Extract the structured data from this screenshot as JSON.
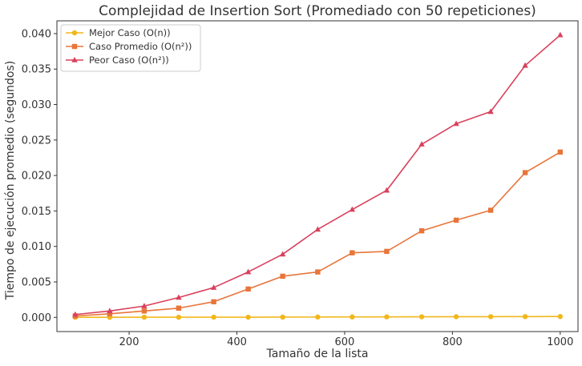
{
  "chart_data": {
    "type": "line",
    "title": "Complejidad de Insertion Sort (Promediado con 50 repeticiones)",
    "xlabel": "Tamaño de la lista",
    "ylabel": "Tiempo de ejecución promedio (segundos)",
    "xlim": [
      66,
      1033
    ],
    "ylim": [
      -0.002,
      0.0418
    ],
    "xticks": [
      200,
      400,
      600,
      800,
      1000
    ],
    "xtick_labels": [
      "200",
      "400",
      "600",
      "800",
      "1000"
    ],
    "yticks": [
      0.0,
      0.005,
      0.01,
      0.015,
      0.02,
      0.025,
      0.03,
      0.035,
      0.04
    ],
    "ytick_labels": [
      "0.000",
      "0.005",
      "0.010",
      "0.015",
      "0.020",
      "0.025",
      "0.030",
      "0.035",
      "0.040"
    ],
    "grid": false,
    "legend_position": "top-left",
    "x": [
      100,
      164,
      228,
      292,
      357,
      421,
      485,
      550,
      614,
      678,
      743,
      807,
      871,
      935,
      1000
    ],
    "series": [
      {
        "name": "Mejor Caso (O(n))",
        "color": "#f1b71c",
        "marker": "circle",
        "values": [
          1e-05,
          1e-05,
          2e-05,
          2e-05,
          3e-05,
          3e-05,
          4e-05,
          5e-05,
          6e-05,
          7e-05,
          8e-05,
          9e-05,
          0.0001,
          0.00011,
          0.00012
        ]
      },
      {
        "name": "Caso Promedio (O(n²))",
        "color": "#e8753a",
        "marker": "square",
        "values": [
          0.0002,
          0.0005,
          0.0009,
          0.0013,
          0.0022,
          0.004,
          0.0058,
          0.0064,
          0.0091,
          0.0093,
          0.0122,
          0.0137,
          0.0151,
          0.0204,
          0.0233
        ]
      },
      {
        "name": "Peor Caso (O(n²))",
        "color": "#d9415d",
        "marker": "triangle",
        "values": [
          0.0004,
          0.0009,
          0.0016,
          0.0028,
          0.0042,
          0.0064,
          0.0089,
          0.0124,
          0.0152,
          0.0179,
          0.0244,
          0.0273,
          0.029,
          0.0355,
          0.0398
        ]
      }
    ]
  }
}
